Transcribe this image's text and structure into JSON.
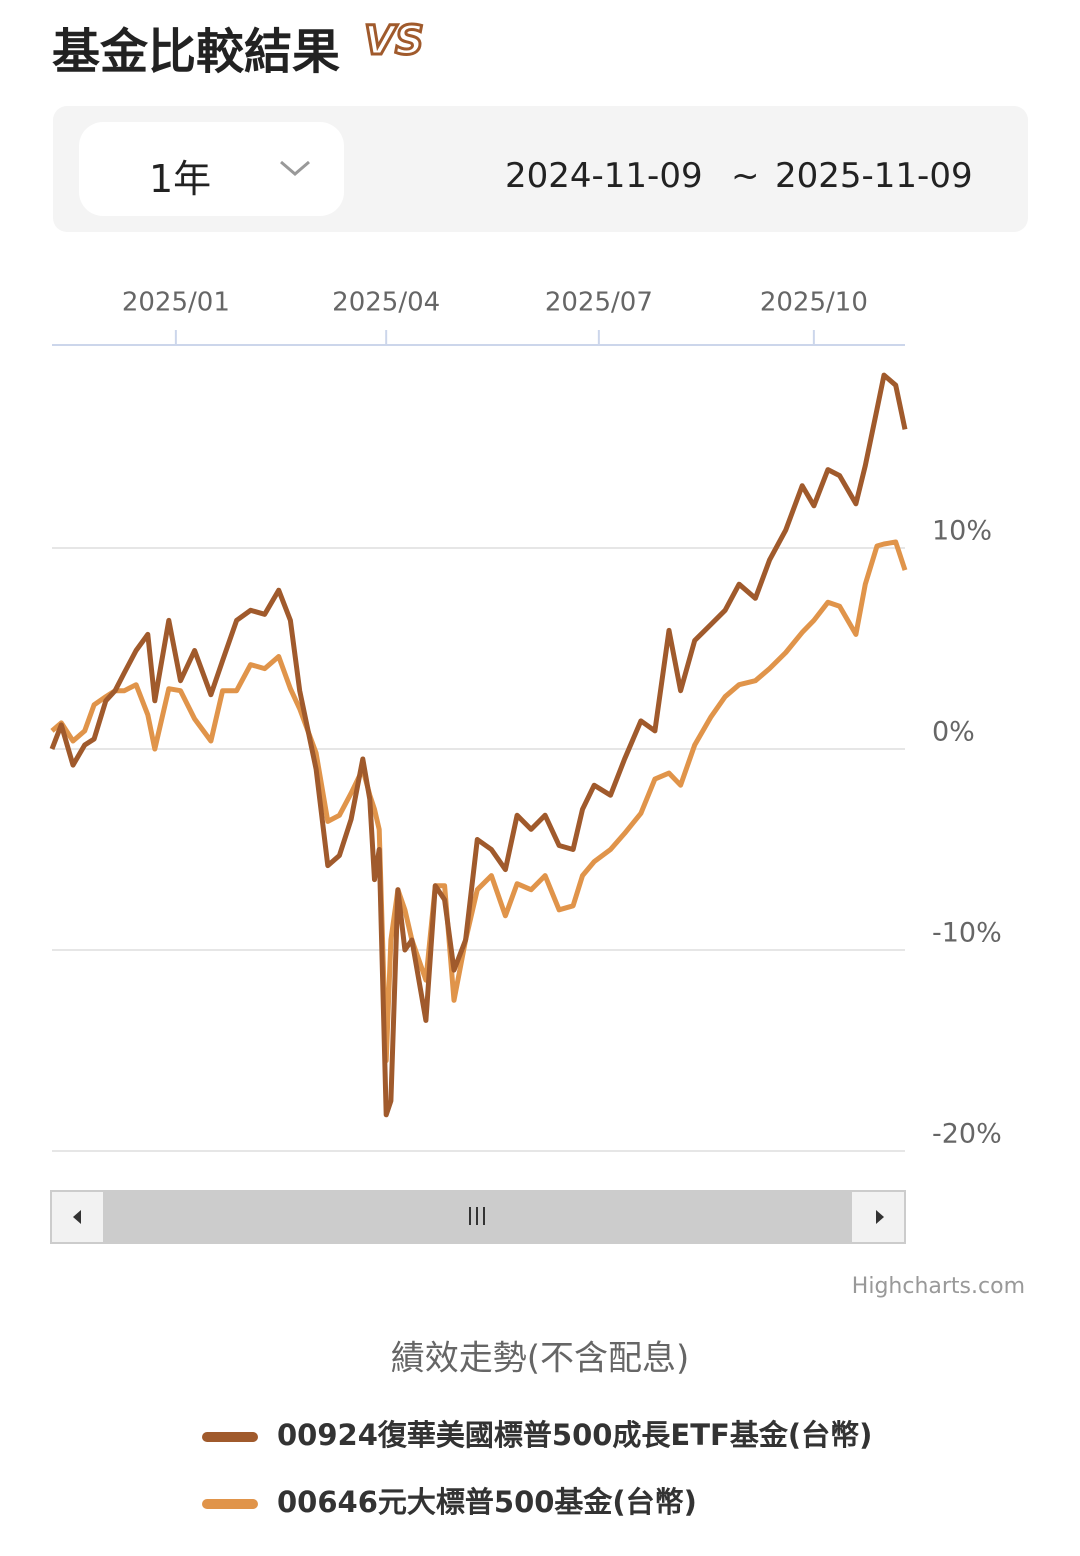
{
  "header": {
    "title": "基金比較結果",
    "badge": "VS"
  },
  "period": {
    "selected": "1年",
    "start": "2024-11-09",
    "separator": "~",
    "end": "2025-11-09"
  },
  "chart_data": {
    "type": "line",
    "title": "績效走勢(不含配息)",
    "credits": "Highcharts.com",
    "x": [
      "2024-11-09",
      "2024-11-13",
      "2024-11-18",
      "2024-11-23",
      "2024-11-27",
      "2024-12-02",
      "2024-12-06",
      "2024-12-10",
      "2024-12-15",
      "2024-12-20",
      "2024-12-23",
      "2024-12-29",
      "2025-01-03",
      "2025-01-09",
      "2025-01-16",
      "2025-01-21",
      "2025-01-27",
      "2025-02-02",
      "2025-02-08",
      "2025-02-14",
      "2025-02-19",
      "2025-02-23",
      "2025-03-02",
      "2025-03-07",
      "2025-03-12",
      "2025-03-17",
      "2025-03-22",
      "2025-03-25",
      "2025-03-27",
      "2025-03-29",
      "2025-04-01",
      "2025-04-03",
      "2025-04-06",
      "2025-04-09",
      "2025-04-12",
      "2025-04-18",
      "2025-04-22",
      "2025-04-26",
      "2025-04-30",
      "2025-05-05",
      "2025-05-10",
      "2025-05-16",
      "2025-05-22",
      "2025-05-27",
      "2025-06-02",
      "2025-06-08",
      "2025-06-14",
      "2025-06-20",
      "2025-06-24",
      "2025-06-29",
      "2025-07-06",
      "2025-07-12",
      "2025-07-19",
      "2025-07-25",
      "2025-07-31",
      "2025-08-05",
      "2025-08-11",
      "2025-08-18",
      "2025-08-24",
      "2025-08-30",
      "2025-09-06",
      "2025-09-12",
      "2025-09-19",
      "2025-09-26",
      "2025-10-01",
      "2025-10-07",
      "2025-10-12",
      "2025-10-19",
      "2025-10-23",
      "2025-10-28",
      "2025-10-31",
      "2025-11-05",
      "2025-11-09"
    ],
    "series": [
      {
        "name": "00924復華美國標普500成長ETF基金(台幣)",
        "color": "#a05a2c",
        "values": [
          0,
          1.2,
          -0.8,
          0.2,
          0.5,
          2.4,
          2.9,
          3.8,
          4.9,
          5.7,
          2.4,
          6.4,
          3.4,
          4.9,
          2.7,
          4.4,
          6.4,
          6.9,
          6.7,
          7.9,
          6.4,
          2.9,
          -1.0,
          -5.8,
          -5.3,
          -3.5,
          -0.5,
          -2.5,
          -6.5,
          -5.0,
          -18.2,
          -17.5,
          -7.0,
          -10.0,
          -9.5,
          -13.5,
          -6.8,
          -7.5,
          -11.0,
          -9.5,
          -4.5,
          -5.0,
          -6.0,
          -3.3,
          -4.0,
          -3.3,
          -4.8,
          -5.0,
          -3.0,
          -1.8,
          -2.3,
          -0.5,
          1.4,
          0.9,
          5.9,
          2.9,
          5.4,
          6.2,
          6.9,
          8.2,
          7.5,
          9.4,
          10.9,
          13.1,
          12.1,
          13.9,
          13.6,
          12.2,
          14.1,
          16.9,
          18.6,
          18.1,
          15.9
        ]
      },
      {
        "name": "00646元大標普500基金(台幣)",
        "color": "#e0944a",
        "values": [
          0.9,
          1.3,
          0.4,
          0.9,
          2.2,
          2.6,
          2.9,
          2.9,
          3.2,
          1.7,
          0,
          3.0,
          2.9,
          1.5,
          0.4,
          2.9,
          2.9,
          4.2,
          4.0,
          4.6,
          3.0,
          2.0,
          -0.2,
          -3.6,
          -3.3,
          -2.2,
          -1.0,
          -2.3,
          -3.0,
          -4.0,
          -15.5,
          -9.5,
          -7.0,
          -8.0,
          -9.5,
          -11.5,
          -6.8,
          -6.8,
          -12.5,
          -9.5,
          -7.0,
          -6.3,
          -8.3,
          -6.7,
          -7.0,
          -6.3,
          -8.0,
          -7.8,
          -6.3,
          -5.6,
          -5.0,
          -4.2,
          -3.2,
          -1.5,
          -1.2,
          -1.8,
          0.2,
          1.6,
          2.6,
          3.2,
          3.4,
          4.0,
          4.8,
          5.8,
          6.4,
          7.3,
          7.1,
          5.7,
          8.2,
          10.1,
          10.2,
          10.3,
          8.9
        ]
      }
    ],
    "xlim": [
      "2024-11-09",
      "2025-11-09"
    ],
    "xticks": [
      {
        "value": "2025-01-01",
        "label": "2025/01"
      },
      {
        "value": "2025-04-01",
        "label": "2025/04"
      },
      {
        "value": "2025-07-01",
        "label": "2025/07"
      },
      {
        "value": "2025-10-01",
        "label": "2025/10"
      }
    ],
    "ylim": [
      -20,
      20
    ],
    "yticks": [
      {
        "value": -20,
        "label": "-20%"
      },
      {
        "value": -10,
        "label": "-10%"
      },
      {
        "value": 0,
        "label": "0%"
      },
      {
        "value": 10,
        "label": "10%"
      }
    ],
    "grid": true
  }
}
